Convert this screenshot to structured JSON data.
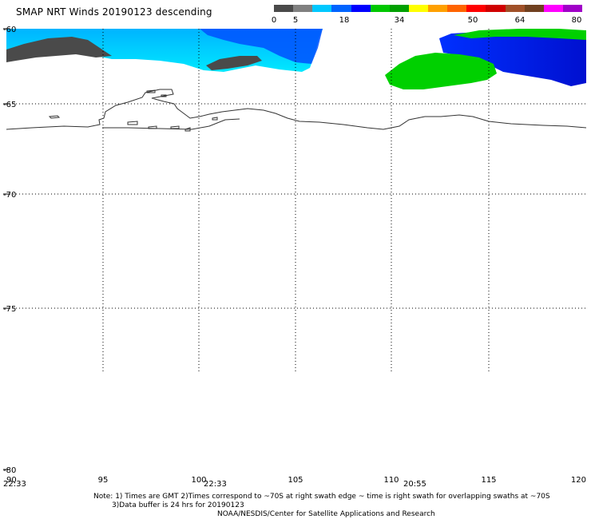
{
  "title": "SMAP NRT Winds  20190123 descending",
  "colorbar": {
    "colors": [
      "#4a4a4a",
      "#808080",
      "#00c8ff",
      "#0064ff",
      "#0000ff",
      "#00c800",
      "#00a000",
      "#ffff00",
      "#ffa000",
      "#ff6400",
      "#ff0000",
      "#d00000",
      "#a05028",
      "#704020",
      "#ff00ff",
      "#a000c8"
    ],
    "labels": [
      "0",
      "5",
      "18",
      "34",
      "50",
      "64",
      "80"
    ]
  },
  "axes": {
    "lat_labels": [
      "-60",
      "-65",
      "-70",
      "-75",
      "-80"
    ],
    "lon_labels": [
      "90",
      "95",
      "100",
      "105",
      "110",
      "115",
      "120"
    ]
  },
  "swath_times": [
    "22:33",
    "22:33",
    "20:55"
  ],
  "notes": {
    "line1": "Note: 1) Times are GMT 2)Times correspond to ~70S at right swath edge ~ time is right swath for overlapping swaths at ~70S",
    "line2": "3)Data buffer is 24 hrs for 20190123",
    "credit": "NOAA/NESDIS/Center for Satellite Applications and Research"
  }
}
